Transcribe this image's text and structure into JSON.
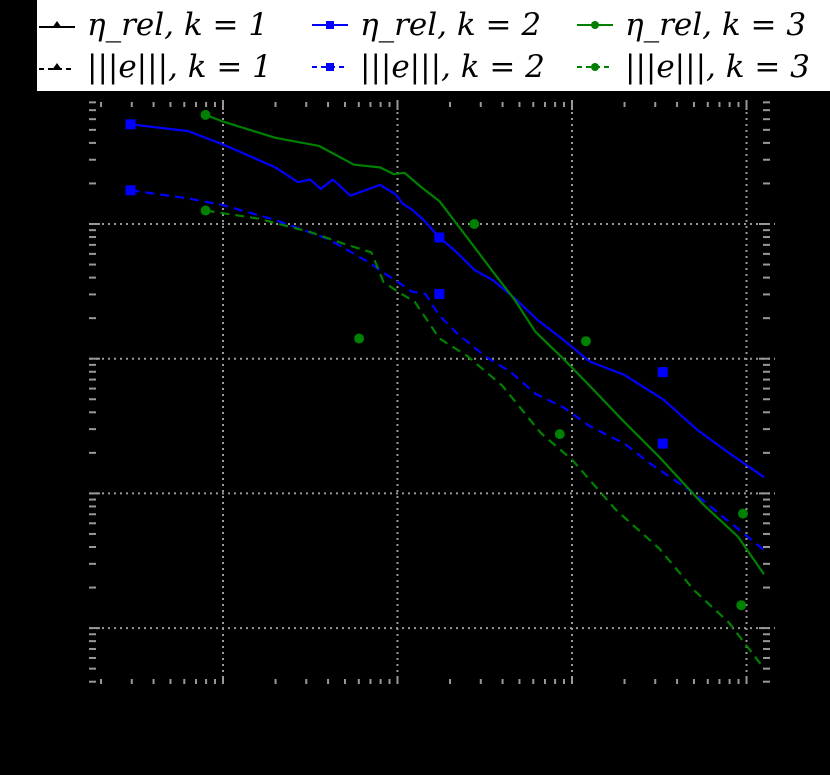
{
  "legend": {
    "items": [
      {
        "label": "η_rel, k = 1",
        "series": "eta_k1",
        "color": "#000000",
        "style": "solid",
        "marker": "triangle"
      },
      {
        "label": "η_rel, k = 2",
        "series": "eta_k2",
        "color": "#0000ff",
        "style": "solid",
        "marker": "square"
      },
      {
        "label": "η_rel, k = 3",
        "series": "eta_k3",
        "color": "#008000",
        "style": "solid",
        "marker": "circle"
      },
      {
        "label": "|||e|||, k = 1",
        "series": "err_k1",
        "color": "#000000",
        "style": "dashed",
        "marker": "triangle"
      },
      {
        "label": "|||e|||, k = 2",
        "series": "err_k2",
        "color": "#0000ff",
        "style": "dashed",
        "marker": "square"
      },
      {
        "label": "|||e|||, k = 3",
        "series": "err_k3",
        "color": "#008000",
        "style": "dashed",
        "marker": "circle"
      }
    ]
  },
  "colors": {
    "background": "#000000",
    "legend_bg": "#ffffff",
    "grid": "#999999",
    "ticks": "#999999",
    "k1": "#000000",
    "k2": "#0000ff",
    "k3": "#008000"
  },
  "chart_data": {
    "type": "line",
    "title": "",
    "xlabel": "",
    "ylabel": "",
    "xscale": "log",
    "yscale": "log",
    "grid": true,
    "legend_position": "top",
    "note": "Tick labels not legible (rendered black on black). Coordinates given in decade units relative to major gridlines: x=0 at first vertical gridline, y=0 at top horizontal gridline (y decreases downward).",
    "x_major_gridlines_decades": [
      0,
      1,
      2,
      3
    ],
    "y_major_gridlines_decades": [
      0,
      -1,
      -2,
      -3
    ],
    "xlim_decades": [
      -0.76,
      3.17
    ],
    "ylim_decades": [
      -3.3,
      0.92
    ],
    "series": [
      {
        "name": "η_rel, k = 1",
        "color": "#000000",
        "style": "solid",
        "marker": "triangle",
        "x": [],
        "y": []
      },
      {
        "name": "|||e|||, k = 1",
        "color": "#000000",
        "style": "dashed",
        "marker": "triangle",
        "x": [],
        "y": []
      },
      {
        "name": "η_rel, k = 2",
        "color": "#0000ff",
        "style": "solid",
        "marker": "square",
        "x": [
          -0.53,
          -0.2,
          0.0,
          0.3,
          0.43,
          0.5,
          0.56,
          0.63,
          0.73,
          0.9,
          0.99,
          1.03,
          1.08,
          1.15,
          1.24,
          1.34,
          1.44,
          1.55,
          1.67,
          1.81,
          1.95,
          2.1,
          2.3,
          2.52,
          2.72,
          2.9,
          3.1
        ],
        "y": [
          0.74,
          0.69,
          0.59,
          0.42,
          0.31,
          0.33,
          0.26,
          0.33,
          0.21,
          0.29,
          0.22,
          0.15,
          0.11,
          0.03,
          -0.1,
          -0.21,
          -0.34,
          -0.42,
          -0.55,
          -0.72,
          -0.86,
          -1.02,
          -1.12,
          -1.3,
          -1.53,
          -1.7,
          -1.88
        ]
      },
      {
        "name": "|||e|||, k = 2",
        "color": "#0000ff",
        "style": "dashed",
        "marker": "square",
        "x": [
          -0.53,
          -0.2,
          0.0,
          0.3,
          0.6,
          0.83,
          0.93,
          0.99,
          1.08,
          1.16,
          1.24,
          1.34,
          1.5,
          1.65,
          1.79,
          1.95,
          2.1,
          2.3,
          2.45,
          2.7,
          2.9,
          3.1
        ],
        "y": [
          0.25,
          0.19,
          0.14,
          0.03,
          -0.11,
          -0.28,
          -0.37,
          -0.42,
          -0.5,
          -0.52,
          -0.68,
          -0.81,
          -0.98,
          -1.1,
          -1.26,
          -1.36,
          -1.5,
          -1.63,
          -1.78,
          -2.0,
          -2.21,
          -2.42
        ]
      },
      {
        "name": "η_rel, k = 3",
        "color": "#008000",
        "style": "solid",
        "marker": "circle",
        "x": [
          -0.1,
          0.0,
          0.3,
          0.55,
          0.75,
          0.9,
          0.98,
          1.04,
          1.14,
          1.24,
          1.34,
          1.44,
          1.55,
          1.67,
          1.79,
          1.95,
          2.1,
          2.3,
          2.5,
          2.75,
          2.95,
          3.1
        ],
        "y": [
          0.81,
          0.76,
          0.64,
          0.58,
          0.44,
          0.42,
          0.37,
          0.38,
          0.27,
          0.17,
          0.0,
          -0.17,
          -0.36,
          -0.56,
          -0.8,
          -1.0,
          -1.2,
          -1.47,
          -1.73,
          -2.08,
          -2.32,
          -2.6
        ]
      },
      {
        "name": "|||e|||, k = 3",
        "color": "#008000",
        "style": "dashed",
        "marker": "circle",
        "x": [
          -0.1,
          0.2,
          0.5,
          0.7,
          0.85,
          0.92,
          1.0,
          1.1,
          1.24,
          1.4,
          1.6,
          1.82,
          2.0,
          2.25,
          2.5,
          2.7,
          2.9,
          3.1
        ],
        "y": [
          0.1,
          0.04,
          -0.06,
          -0.15,
          -0.21,
          -0.43,
          -0.5,
          -0.58,
          -0.85,
          -0.98,
          -1.2,
          -1.55,
          -1.75,
          -2.12,
          -2.41,
          -2.72,
          -2.96,
          -3.3
        ]
      }
    ],
    "markers": {
      "η_rel, k = 2": [
        [
          -0.53,
          0.74
        ],
        [
          1.24,
          -0.1
        ],
        [
          2.52,
          -1.1
        ]
      ],
      "|||e|||, k = 2": [
        [
          -0.53,
          0.25
        ],
        [
          1.24,
          -0.52
        ],
        [
          2.52,
          -1.63
        ]
      ],
      "η_rel, k = 3": [
        [
          -0.1,
          0.81
        ],
        [
          1.44,
          0.0
        ],
        [
          2.08,
          -0.87
        ],
        [
          2.98,
          -2.15
        ]
      ],
      "|||e|||, k = 3": [
        [
          -0.1,
          0.1
        ],
        [
          0.78,
          -0.85
        ],
        [
          1.93,
          -1.56
        ],
        [
          2.97,
          -2.83
        ]
      ]
    }
  }
}
